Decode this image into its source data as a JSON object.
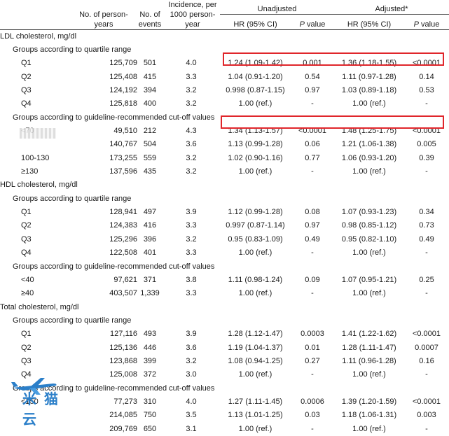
{
  "header": {
    "py": "No. of person-years",
    "events": "No. of events",
    "incidence": "Incidence, per 1000 person-year",
    "unadjusted": "Unadjusted",
    "adjusted": "Adjusted*",
    "hr": "HR (95% CI)",
    "p_italic": "P",
    "p_rest": " value"
  },
  "sections": [
    {
      "title": "LDL cholesterol, mg/dl",
      "groups": [
        {
          "label": "Groups according to quartile range",
          "rows": [
            {
              "label": "Q1",
              "py": "125,709",
              "events": "501",
              "inc": "4.0",
              "hr_u": "1.24 (1.09-1.42)",
              "p_u": "0.001",
              "hr_a": "1.36 (1.18-1.55)",
              "p_a": "<0.0001"
            },
            {
              "label": "Q2",
              "py": "125,408",
              "events": "415",
              "inc": "3.3",
              "hr_u": "1.04 (0.91-1.20)",
              "p_u": "0.54",
              "hr_a": "1.11 (0.97-1.28)",
              "p_a": "0.14"
            },
            {
              "label": "Q3",
              "py": "124,192",
              "events": "394",
              "inc": "3.2",
              "hr_u": "0.998 (0.87-1.15)",
              "p_u": "0.97",
              "hr_a": "1.03 (0.89-1.18)",
              "p_a": "0.53"
            },
            {
              "label": "Q4",
              "py": "125,818",
              "events": "400",
              "inc": "3.2",
              "hr_u": "1.00 (ref.)",
              "p_u": "-",
              "hr_a": "1.00 (ref.)",
              "p_a": "-"
            }
          ]
        },
        {
          "label": "Groups according to guideline-recommended cut-off values",
          "rows": [
            {
              "label": "<70",
              "py": "49,510",
              "events": "212",
              "inc": "4.3",
              "hr_u": "1.34 (1.13-1.57)",
              "p_u": "<0.0001",
              "hr_a": "1.48 (1.25-1.75)",
              "p_a": "<0.0001"
            },
            {
              "label": "",
              "py": "140,767",
              "events": "504",
              "inc": "3.6",
              "hr_u": "1.13 (0.99-1.28)",
              "p_u": "0.06",
              "hr_a": "1.21 (1.06-1.38)",
              "p_a": "0.005"
            },
            {
              "label": "100-130",
              "py": "173,255",
              "events": "559",
              "inc": "3.2",
              "hr_u": "1.02 (0.90-1.16)",
              "p_u": "0.77",
              "hr_a": "1.06 (0.93-1.20)",
              "p_a": "0.39"
            },
            {
              "label": "≥130",
              "py": "137,596",
              "events": "435",
              "inc": "3.2",
              "hr_u": "1.00 (ref.)",
              "p_u": "-",
              "hr_a": "1.00 (ref.)",
              "p_a": "-"
            }
          ]
        }
      ]
    },
    {
      "title": "HDL cholesterol, mg/dl",
      "groups": [
        {
          "label": "Groups according to quartile range",
          "rows": [
            {
              "label": "Q1",
              "py": "128,941",
              "events": "497",
              "inc": "3.9",
              "hr_u": "1.12 (0.99-1.28)",
              "p_u": "0.08",
              "hr_a": "1.07 (0.93-1.23)",
              "p_a": "0.34"
            },
            {
              "label": "Q2",
              "py": "124,383",
              "events": "416",
              "inc": "3.3",
              "hr_u": "0.997 (0.87-1.14)",
              "p_u": "0.97",
              "hr_a": "0.98 (0.85-1.12)",
              "p_a": "0.73"
            },
            {
              "label": "Q3",
              "py": "125,296",
              "events": "396",
              "inc": "3.2",
              "hr_u": "0.95 (0.83-1.09)",
              "p_u": "0.49",
              "hr_a": "0.95 (0.82-1.10)",
              "p_a": "0.49"
            },
            {
              "label": "Q4",
              "py": "122,508",
              "events": "401",
              "inc": "3.3",
              "hr_u": "1.00 (ref.)",
              "p_u": "-",
              "hr_a": "1.00 (ref.)",
              "p_a": "-"
            }
          ]
        },
        {
          "label": "Groups according to  guideline-recommended cut-off values",
          "rows": [
            {
              "label": "<40",
              "py": "97,621",
              "events": "371",
              "inc": "3.8",
              "hr_u": "1.11 (0.98-1.24)",
              "p_u": "0.09",
              "hr_a": "1.07 (0.95-1.21)",
              "p_a": "0.25"
            },
            {
              "label": "≥40",
              "py": "403,507",
              "events": "1,339",
              "inc": "3.3",
              "hr_u": "1.00 (ref.)",
              "p_u": "-",
              "hr_a": "1.00 (ref.)",
              "p_a": "-"
            }
          ]
        }
      ]
    },
    {
      "title": "Total cholesterol, mg/dl",
      "groups": [
        {
          "label": "Groups according to quartile range",
          "rows": [
            {
              "label": "Q1",
              "py": "127,116",
              "events": "493",
              "inc": "3.9",
              "hr_u": "1.28 (1.12-1.47)",
              "p_u": "0.0003",
              "hr_a": "1.41 (1.22-1.62)",
              "p_a": "<0.0001"
            },
            {
              "label": "Q2",
              "py": "125,136",
              "events": "446",
              "inc": "3.6",
              "hr_u": "1.19 (1.04-1.37)",
              "p_u": "0.01",
              "hr_a": "1.28 (1.11-1.47)",
              "p_a": "0.0007"
            },
            {
              "label": "Q3",
              "py": "123,868",
              "events": "399",
              "inc": "3.2",
              "hr_u": "1.08 (0.94-1.25)",
              "p_u": "0.27",
              "hr_a": "1.11 (0.96-1.28)",
              "p_a": "0.16"
            },
            {
              "label": "Q4",
              "py": "125,008",
              "events": "372",
              "inc": "3.0",
              "hr_u": "1.00 (ref.)",
              "p_u": "-",
              "hr_a": "1.00 (ref.)",
              "p_a": "-"
            }
          ]
        },
        {
          "label": "Groups according to  guideline-recommended cut-off values",
          "rows": [
            {
              "label": "<150",
              "py": "77,273",
              "events": "310",
              "inc": "4.0",
              "hr_u": "1.27 (1.11-1.45)",
              "p_u": "0.0006",
              "hr_a": "1.39 (1.20-1.59)",
              "p_a": "<0.0001"
            },
            {
              "label": "",
              "py": "214,085",
              "events": "750",
              "inc": "3.5",
              "hr_u": "1.13 (1.01-1.25)",
              "p_u": "0.03",
              "hr_a": "1.18 (1.06-1.31)",
              "p_a": "0.003"
            },
            {
              "label": "",
              "py": "209,769",
              "events": "650",
              "inc": "3.1",
              "hr_u": "1.00 (ref.)",
              "p_u": "-",
              "hr_a": "1.00 (ref.)",
              "p_a": "-"
            }
          ]
        }
      ]
    }
  ],
  "highlight_color": "#e0262b",
  "watermark": {
    "text": "米 猫 云",
    "icon": "airplane-icon",
    "color": "#2b7fc9"
  }
}
